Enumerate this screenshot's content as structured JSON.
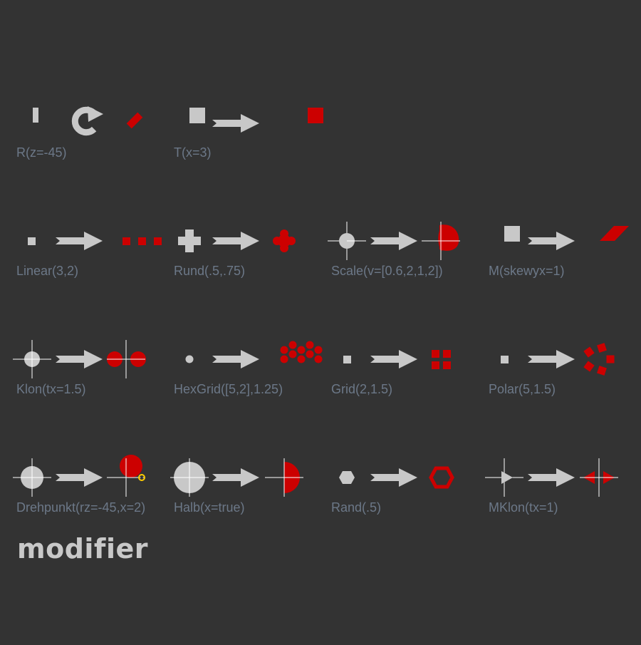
{
  "title": "modifier",
  "colors": {
    "background": "#333333",
    "source": "#c8c8c8",
    "result": "#cc0000",
    "label": "#6c7888",
    "guide": "#ffffff",
    "pivot": "#ffcc00"
  },
  "items": [
    {
      "id": "rotate",
      "label": "R(z=-45)"
    },
    {
      "id": "translate",
      "label": "T(x=3)"
    },
    {
      "id": "linear",
      "label": "Linear(3,2)"
    },
    {
      "id": "round",
      "label": "Rund(.5,.75)"
    },
    {
      "id": "scale",
      "label": "Scale(v=[0.6,2,1,2])"
    },
    {
      "id": "skew",
      "label": "M(skewyx=1)"
    },
    {
      "id": "clone",
      "label": "Klon(tx=1.5)"
    },
    {
      "id": "hexgrid",
      "label": "HexGrid([5,2],1.25)"
    },
    {
      "id": "grid",
      "label": "Grid(2,1.5)"
    },
    {
      "id": "polar",
      "label": "Polar(5,1.5)"
    },
    {
      "id": "pivot",
      "label": "Drehpunkt(rz=-45,x=2)"
    },
    {
      "id": "half",
      "label": "Halb(x=true)"
    },
    {
      "id": "rim",
      "label": "Rand(.5)"
    },
    {
      "id": "mirror-clone",
      "label": "MKlon(tx=1)"
    }
  ]
}
